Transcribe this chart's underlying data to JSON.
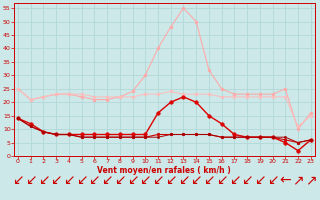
{
  "x": [
    0,
    1,
    2,
    3,
    4,
    5,
    6,
    7,
    8,
    9,
    10,
    11,
    12,
    13,
    14,
    15,
    16,
    17,
    18,
    19,
    20,
    21,
    22,
    23
  ],
  "series": [
    {
      "name": "rafales_light_high",
      "color": "#ffaaaa",
      "marker": "o",
      "linewidth": 0.8,
      "markersize": 2.0,
      "values": [
        25,
        21,
        22,
        23,
        23,
        22,
        21,
        21,
        22,
        24,
        30,
        40,
        48,
        55,
        50,
        32,
        25,
        23,
        23,
        23,
        23,
        25,
        10,
        16
      ]
    },
    {
      "name": "moyen_light_flat",
      "color": "#ffbbbb",
      "marker": "o",
      "linewidth": 0.7,
      "markersize": 1.8,
      "values": [
        25,
        21,
        22,
        23,
        23,
        23,
        22,
        22,
        22,
        22,
        23,
        23,
        24,
        23,
        23,
        23,
        22,
        22,
        22,
        22,
        22,
        22,
        11,
        15
      ]
    },
    {
      "name": "rafales_dark",
      "color": "#dd0000",
      "marker": "o",
      "linewidth": 1.0,
      "markersize": 2.5,
      "values": [
        14,
        12,
        9,
        8,
        8,
        8,
        8,
        8,
        8,
        8,
        8,
        16,
        20,
        22,
        20,
        15,
        12,
        8,
        7,
        7,
        7,
        5,
        2,
        6
      ]
    },
    {
      "name": "moyen_dark1",
      "color": "#cc0000",
      "marker": "o",
      "linewidth": 0.8,
      "markersize": 1.8,
      "values": [
        14,
        11,
        9,
        8,
        8,
        7,
        7,
        7,
        7,
        7,
        7,
        8,
        8,
        8,
        8,
        8,
        7,
        7,
        7,
        7,
        7,
        6,
        5,
        6
      ]
    },
    {
      "name": "moyen_dark2",
      "color": "#aa0000",
      "marker": "o",
      "linewidth": 0.7,
      "markersize": 1.5,
      "values": [
        14,
        11,
        9,
        8,
        8,
        7,
        7,
        7,
        7,
        7,
        7,
        7,
        8,
        8,
        8,
        8,
        7,
        7,
        7,
        7,
        7,
        7,
        5,
        6
      ]
    }
  ],
  "xlim": [
    -0.3,
    23.3
  ],
  "ylim": [
    0,
    57
  ],
  "yticks": [
    0,
    5,
    10,
    15,
    20,
    25,
    30,
    35,
    40,
    45,
    50,
    55
  ],
  "xticks": [
    0,
    1,
    2,
    3,
    4,
    5,
    6,
    7,
    8,
    9,
    10,
    11,
    12,
    13,
    14,
    15,
    16,
    17,
    18,
    19,
    20,
    21,
    22,
    23
  ],
  "xlabel": "Vent moyen/en rafales ( km/h )",
  "background_color": "#cce8e8",
  "grid_color": "#b0d8d8",
  "tick_color": "#cc0000",
  "label_color": "#cc0000"
}
